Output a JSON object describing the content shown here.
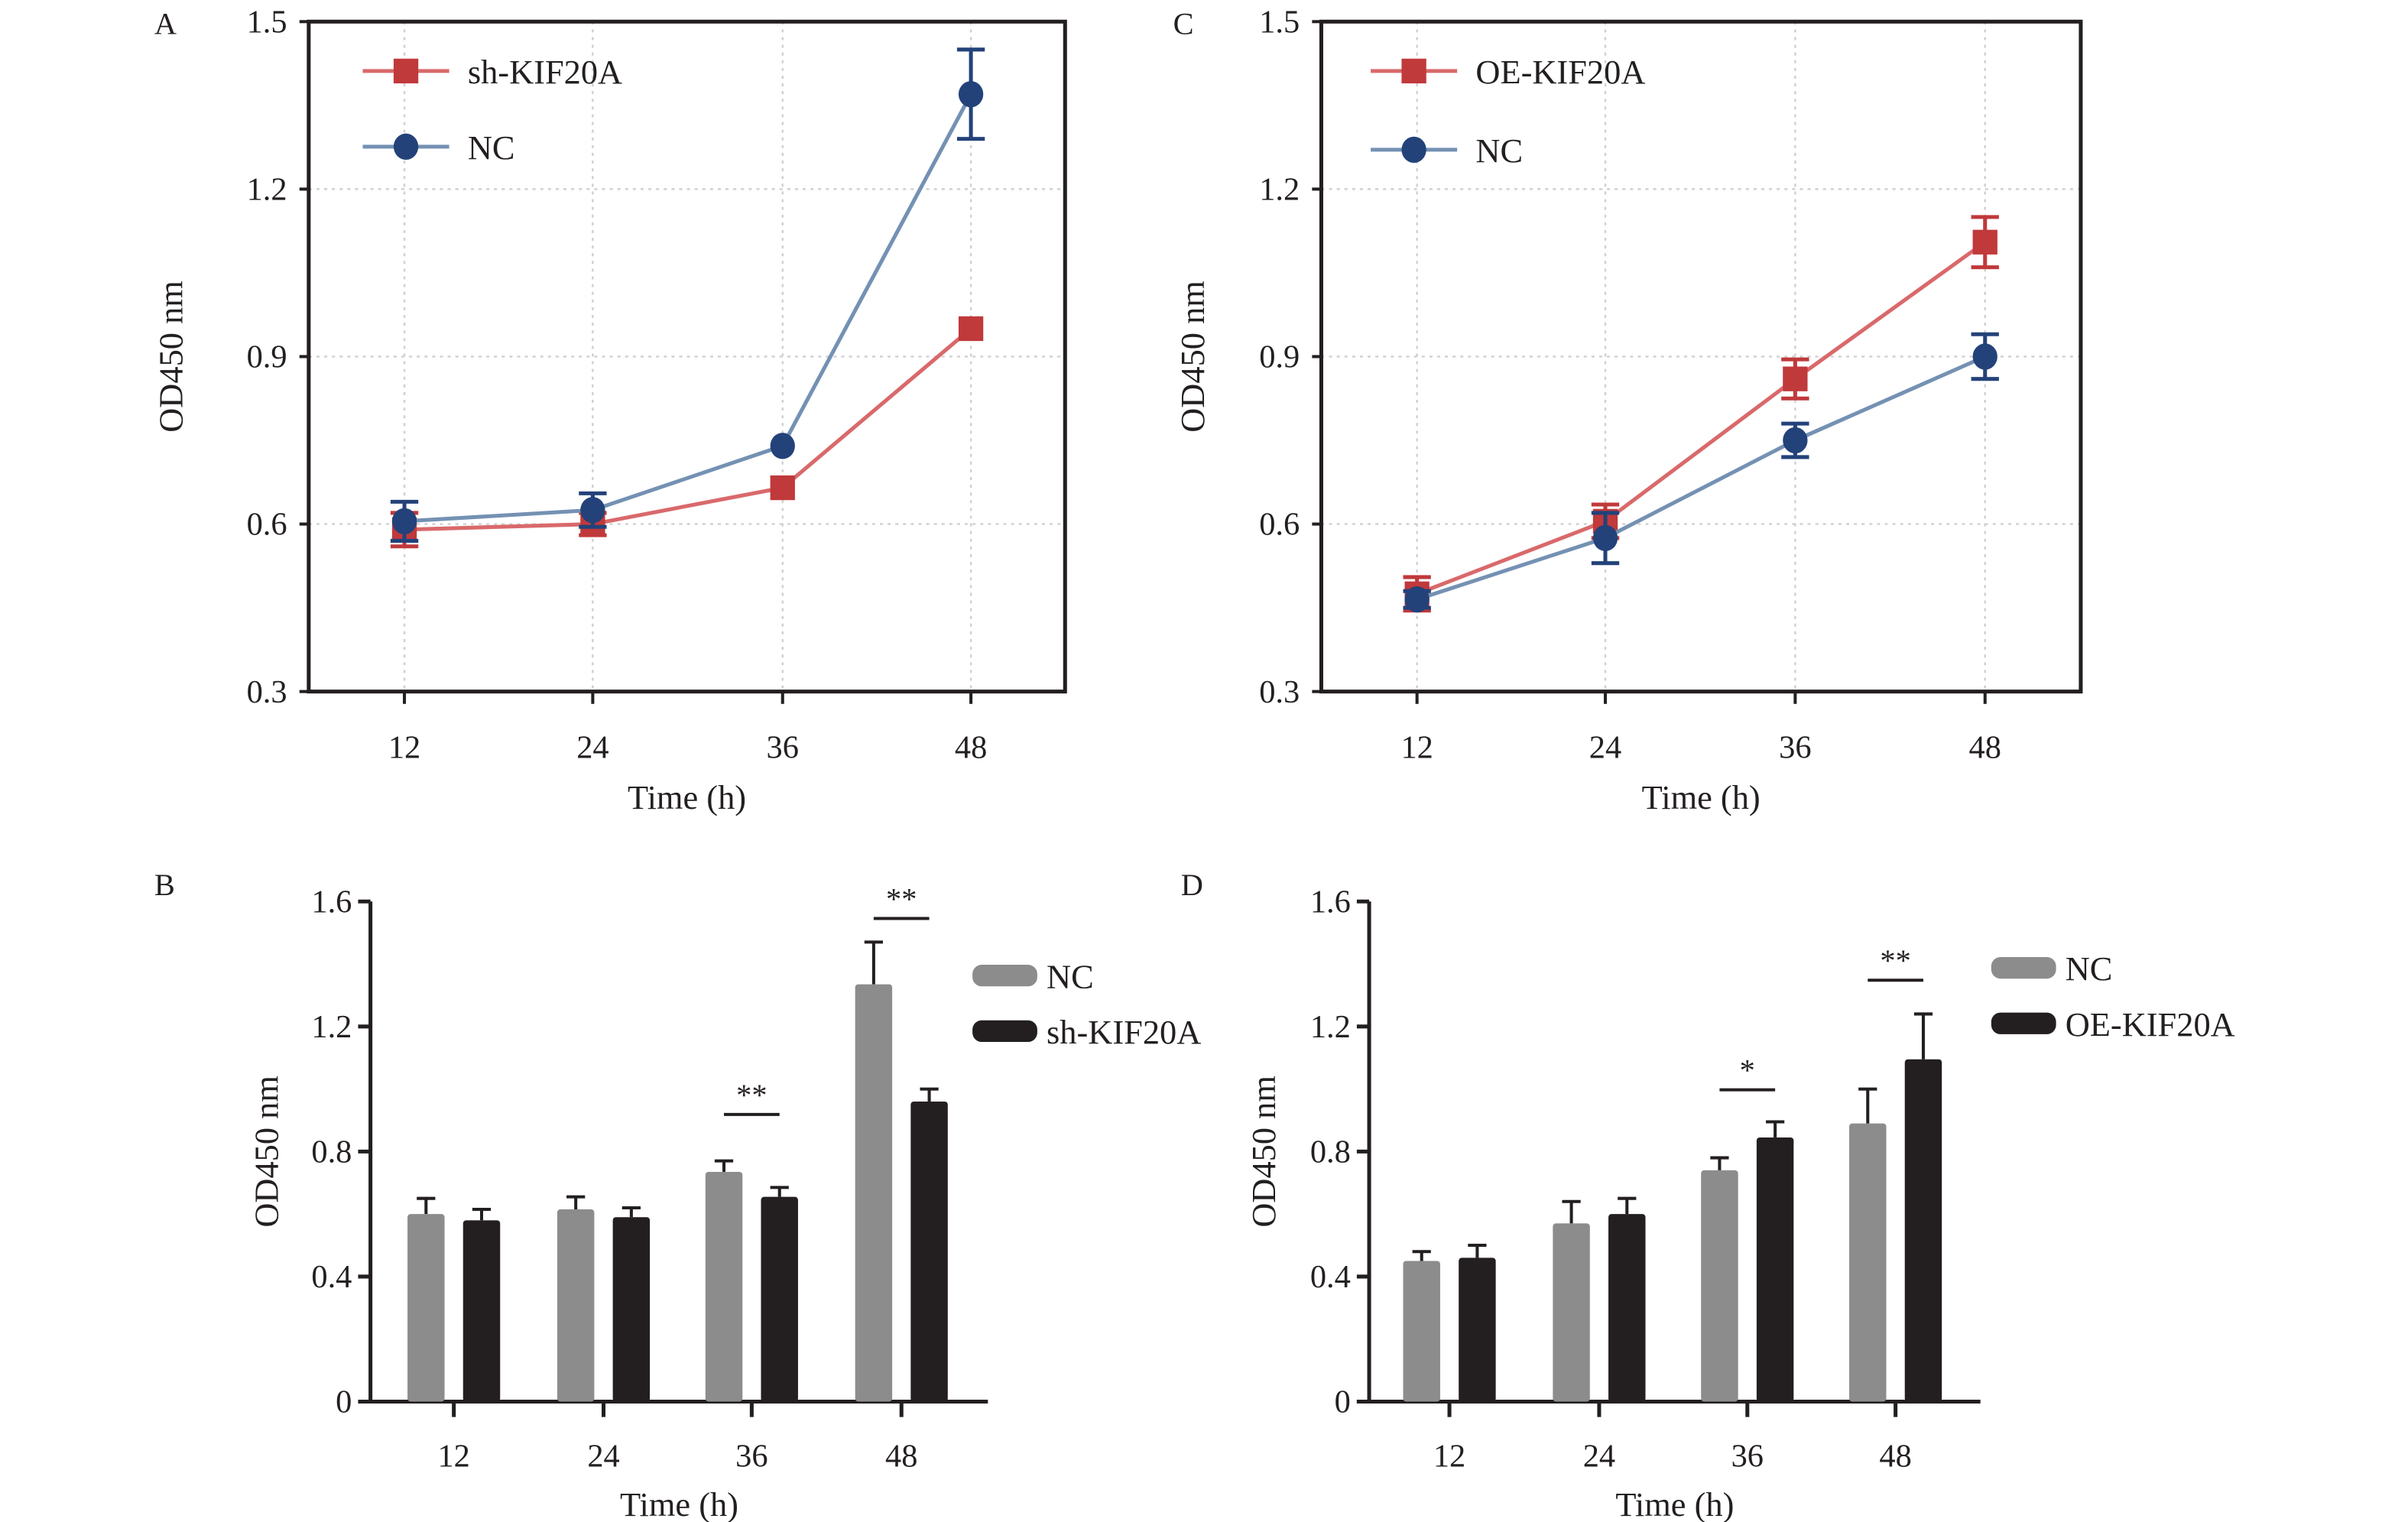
{
  "colors": {
    "red": "#c0393b",
    "red_line": "#d9696b",
    "blue": "#23427a",
    "blue_line": "#7491b3",
    "bar_gray": "#8c8c8c",
    "bar_black": "#231f20",
    "grid": "#d0d0d0"
  },
  "chart_data": [
    {
      "panel": "A",
      "type": "line",
      "title": "",
      "xlabel": "Time (h)",
      "ylabel": "OD450 nm",
      "categories": [
        "12",
        "24",
        "36",
        "48"
      ],
      "ylim": [
        0.3,
        1.5
      ],
      "yticks": [
        "0.3",
        "0.6",
        "0.9",
        "1.2",
        "1.5"
      ],
      "grid": true,
      "legend": "top-left",
      "series": [
        {
          "name": "sh-KIF20A",
          "marker": "square",
          "values": [
            0.59,
            0.6,
            0.665,
            0.95
          ],
          "errors": [
            0.03,
            0.02,
            0,
            0
          ]
        },
        {
          "name": "NC",
          "marker": "circle",
          "values": [
            0.605,
            0.625,
            0.74,
            1.37
          ],
          "errors": [
            0.035,
            0.03,
            0,
            0.08
          ]
        }
      ]
    },
    {
      "panel": "B",
      "type": "bar",
      "title": "",
      "xlabel": "Time (h)",
      "ylabel": "OD450 nm",
      "categories": [
        "12",
        "24",
        "36",
        "48"
      ],
      "ylim": [
        0,
        1.6
      ],
      "yticks": [
        "0",
        "0.4",
        "0.8",
        "1.2",
        "1.6"
      ],
      "grid": false,
      "legend": "right",
      "series": [
        {
          "name": "NC",
          "values": [
            0.6,
            0.615,
            0.735,
            1.335
          ],
          "errors": [
            0.05,
            0.04,
            0.035,
            0.135
          ]
        },
        {
          "name": "sh-KIF20A",
          "values": [
            0.58,
            0.59,
            0.655,
            0.96
          ],
          "errors": [
            0.035,
            0.03,
            0.03,
            0.04
          ]
        }
      ],
      "significance": [
        {
          "category": "36",
          "label": "**"
        },
        {
          "category": "48",
          "label": "**"
        }
      ]
    },
    {
      "panel": "C",
      "type": "line",
      "title": "",
      "xlabel": "Time (h)",
      "ylabel": "OD450 nm",
      "categories": [
        "12",
        "24",
        "36",
        "48"
      ],
      "ylim": [
        0.3,
        1.5
      ],
      "yticks": [
        "0.3",
        "0.6",
        "0.9",
        "1.2",
        "1.5"
      ],
      "grid": true,
      "legend": "top-left",
      "series": [
        {
          "name": "OE-KIF20A",
          "marker": "square",
          "values": [
            0.475,
            0.605,
            0.86,
            1.105
          ],
          "errors": [
            0.03,
            0.03,
            0.035,
            0.045
          ]
        },
        {
          "name": "NC",
          "marker": "circle",
          "values": [
            0.465,
            0.575,
            0.75,
            0.9
          ],
          "errors": [
            0.015,
            0.045,
            0.03,
            0.04
          ]
        }
      ]
    },
    {
      "panel": "D",
      "type": "bar",
      "title": "",
      "xlabel": "Time (h)",
      "ylabel": "OD450 nm",
      "categories": [
        "12",
        "24",
        "36",
        "48"
      ],
      "ylim": [
        0,
        1.6
      ],
      "yticks": [
        "0",
        "0.4",
        "0.8",
        "1.2",
        "1.6"
      ],
      "grid": false,
      "legend": "right",
      "series": [
        {
          "name": "NC",
          "values": [
            0.45,
            0.57,
            0.74,
            0.89
          ],
          "errors": [
            0.03,
            0.07,
            0.04,
            0.11
          ]
        },
        {
          "name": "OE-KIF20A",
          "values": [
            0.46,
            0.6,
            0.845,
            1.095
          ],
          "errors": [
            0.04,
            0.05,
            0.05,
            0.145
          ]
        }
      ],
      "significance": [
        {
          "category": "36",
          "label": "*"
        },
        {
          "category": "48",
          "label": "**"
        }
      ]
    }
  ]
}
